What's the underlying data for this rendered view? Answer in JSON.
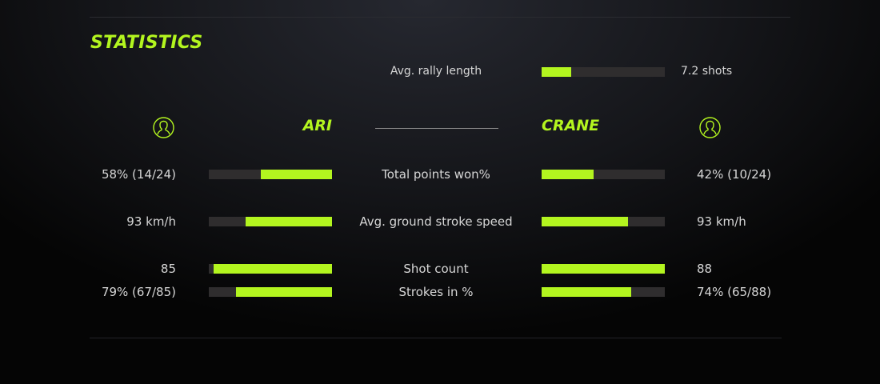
{
  "title": "STATISTICS",
  "accent": "#b3f51f",
  "rally": {
    "label": "Avg. rally length",
    "value": "7.2 shots",
    "fill": 0.24
  },
  "players": {
    "left": {
      "name": "ARI",
      "icon": "user-circle-icon"
    },
    "right": {
      "name": "CRANE",
      "icon": "user-circle-icon"
    }
  },
  "stats": [
    {
      "label": "Total points won%",
      "left": "58% (14/24)",
      "right": "42% (10/24)",
      "left_fill": 0.58,
      "right_fill": 0.42
    },
    {
      "label": "Avg. ground stroke speed",
      "left": "93 km/h",
      "right": "93 km/h",
      "left_fill": 0.7,
      "right_fill": 0.7
    },
    {
      "label": "Shot count",
      "left": "85",
      "right": "88",
      "left_fill": 0.96,
      "right_fill": 1.0
    },
    {
      "label": "Strokes in %",
      "left": "79% (67/85)",
      "right": "74% (65/88)",
      "left_fill": 0.78,
      "right_fill": 0.73
    }
  ]
}
